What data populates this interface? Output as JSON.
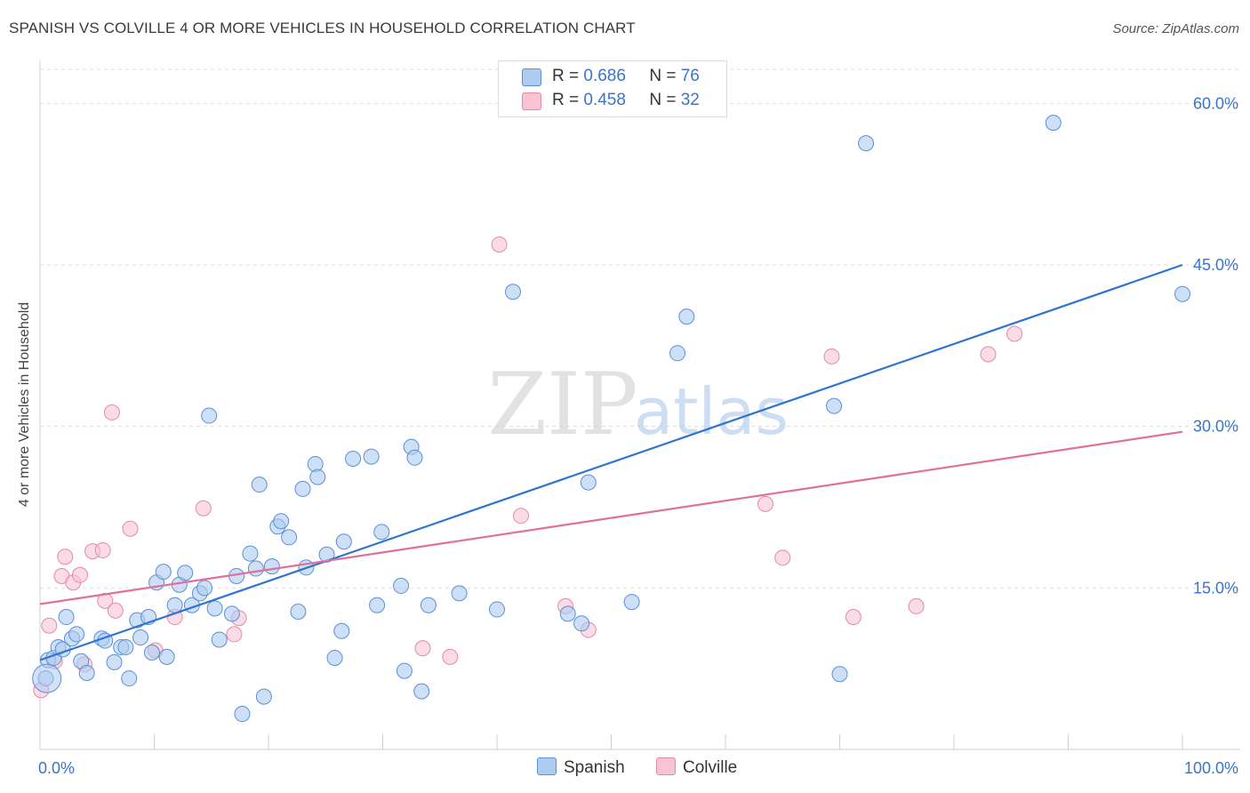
{
  "header": {
    "title": "SPANISH VS COLVILLE 4 OR MORE VEHICLES IN HOUSEHOLD CORRELATION CHART",
    "source": "Source: ZipAtlas.com"
  },
  "watermark": {
    "zip": "ZIP",
    "atlas": "atlas"
  },
  "stats": [
    {
      "r_label": "R =",
      "r_value": "0.686",
      "n_label": "N =",
      "n_value": "76"
    },
    {
      "r_label": "R =",
      "r_value": "0.458",
      "n_label": "N =",
      "n_value": "32"
    }
  ],
  "colors": {
    "spanish_fill": "#aecbf0",
    "spanish_stroke": "#5b8fd6",
    "spanish_line": "#2f74d0",
    "colville_fill": "#f8c3d3",
    "colville_stroke": "#e48aa6",
    "colville_line": "#e0709a",
    "value_text": "#3b74c9",
    "grid": "#dedede"
  },
  "chart_data": {
    "type": "scatter",
    "title": "SPANISH VS COLVILLE 4 OR MORE VEHICLES IN HOUSEHOLD CORRELATION CHART",
    "xlabel": "",
    "ylabel": "4 or more Vehicles in Household",
    "xlim": [
      0,
      100
    ],
    "ylim": [
      0,
      63
    ],
    "x_tick_labels": [
      "0.0%",
      "100.0%"
    ],
    "y_ticks": [
      15,
      30,
      45,
      60
    ],
    "y_tick_labels": [
      "15.0%",
      "30.0%",
      "45.0%",
      "60.0%"
    ],
    "grid": true,
    "legend": "bottom-center",
    "series": [
      {
        "name": "Spanish",
        "r": 0.686,
        "n": 76,
        "trend": {
          "x0": 0,
          "y0": 8.3,
          "x1": 100,
          "y1": 45.0
        },
        "points": [
          [
            0.5,
            6.6
          ],
          [
            0.7,
            8.3
          ],
          [
            1.2,
            8.5
          ],
          [
            1.6,
            9.5
          ],
          [
            2.0,
            9.3
          ],
          [
            2.3,
            12.3
          ],
          [
            2.8,
            10.3
          ],
          [
            3.2,
            10.7
          ],
          [
            3.6,
            8.2
          ],
          [
            4.1,
            7.1
          ],
          [
            5.4,
            10.3
          ],
          [
            5.7,
            10.1
          ],
          [
            6.5,
            8.1
          ],
          [
            7.1,
            9.5
          ],
          [
            7.5,
            9.5
          ],
          [
            7.8,
            6.6
          ],
          [
            8.5,
            12.0
          ],
          [
            8.8,
            10.4
          ],
          [
            9.5,
            12.3
          ],
          [
            9.8,
            9.0
          ],
          [
            10.2,
            15.5
          ],
          [
            10.8,
            16.5
          ],
          [
            11.1,
            8.6
          ],
          [
            11.8,
            13.4
          ],
          [
            12.2,
            15.3
          ],
          [
            12.7,
            16.4
          ],
          [
            13.3,
            13.4
          ],
          [
            14.0,
            14.5
          ],
          [
            14.4,
            15.0
          ],
          [
            14.8,
            31.0
          ],
          [
            15.3,
            13.1
          ],
          [
            15.7,
            10.2
          ],
          [
            16.8,
            12.6
          ],
          [
            17.2,
            16.1
          ],
          [
            17.7,
            3.3
          ],
          [
            18.4,
            18.2
          ],
          [
            18.9,
            16.8
          ],
          [
            19.2,
            24.6
          ],
          [
            19.6,
            4.9
          ],
          [
            20.3,
            17.0
          ],
          [
            20.8,
            20.7
          ],
          [
            21.1,
            21.2
          ],
          [
            21.8,
            19.7
          ],
          [
            22.6,
            12.8
          ],
          [
            23.0,
            24.2
          ],
          [
            23.3,
            16.9
          ],
          [
            24.1,
            26.5
          ],
          [
            24.3,
            25.3
          ],
          [
            25.1,
            18.1
          ],
          [
            25.8,
            8.5
          ],
          [
            26.4,
            11.0
          ],
          [
            26.6,
            19.3
          ],
          [
            27.4,
            27.0
          ],
          [
            29.0,
            27.2
          ],
          [
            29.5,
            13.4
          ],
          [
            29.9,
            20.2
          ],
          [
            31.6,
            15.2
          ],
          [
            31.9,
            7.3
          ],
          [
            32.5,
            28.1
          ],
          [
            32.8,
            27.1
          ],
          [
            33.4,
            5.4
          ],
          [
            34.0,
            13.4
          ],
          [
            36.7,
            14.5
          ],
          [
            40.0,
            13.0
          ],
          [
            41.4,
            42.5
          ],
          [
            46.2,
            12.6
          ],
          [
            47.4,
            11.7
          ],
          [
            48.0,
            24.8
          ],
          [
            51.8,
            13.7
          ],
          [
            55.8,
            36.8
          ],
          [
            56.6,
            40.2
          ],
          [
            69.5,
            31.9
          ],
          [
            70.0,
            7.0
          ],
          [
            72.3,
            56.3
          ],
          [
            88.7,
            58.2
          ],
          [
            100.0,
            42.3
          ]
        ]
      },
      {
        "name": "Colville",
        "r": 0.458,
        "n": 32,
        "trend": {
          "x0": 0,
          "y0": 13.5,
          "x1": 100,
          "y1": 29.5
        },
        "points": [
          [
            0.1,
            5.5
          ],
          [
            0.8,
            11.5
          ],
          [
            1.3,
            8.2
          ],
          [
            1.9,
            16.1
          ],
          [
            2.2,
            17.9
          ],
          [
            2.9,
            15.5
          ],
          [
            3.5,
            16.2
          ],
          [
            3.9,
            7.9
          ],
          [
            4.6,
            18.4
          ],
          [
            5.5,
            18.5
          ],
          [
            5.7,
            13.8
          ],
          [
            6.3,
            31.3
          ],
          [
            6.6,
            12.9
          ],
          [
            7.9,
            20.5
          ],
          [
            10.1,
            9.2
          ],
          [
            11.8,
            12.3
          ],
          [
            14.3,
            22.4
          ],
          [
            17.0,
            10.7
          ],
          [
            17.4,
            12.2
          ],
          [
            33.5,
            9.4
          ],
          [
            35.9,
            8.6
          ],
          [
            40.2,
            46.9
          ],
          [
            42.1,
            21.7
          ],
          [
            46.0,
            13.3
          ],
          [
            48.0,
            11.1
          ],
          [
            63.5,
            22.8
          ],
          [
            65.0,
            17.8
          ],
          [
            69.3,
            36.5
          ],
          [
            71.2,
            12.3
          ],
          [
            76.7,
            13.3
          ],
          [
            83.0,
            36.7
          ],
          [
            85.3,
            38.6
          ]
        ]
      }
    ]
  }
}
